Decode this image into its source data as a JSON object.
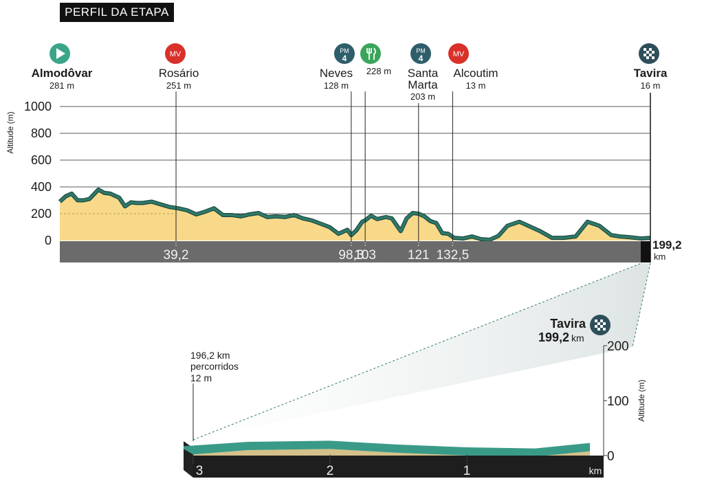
{
  "header": {
    "title": "PERFIL DA ETAPA"
  },
  "colors": {
    "terrain_fill": "#f8d98a",
    "profile_line": "#2f7a6a",
    "base_bar": "#6b6b6b",
    "finish_bar": "#111111",
    "start_icon": "#3aa58a",
    "mv_icon": "#d9302a",
    "pm_icon": "#2e5e6a",
    "food_icon": "#3aa55a",
    "finish_icon": "#2e4e5a",
    "zoom_top": "#3a9a88",
    "zoom_side": "#d4c08a"
  },
  "chart_data": [
    {
      "type": "area",
      "ylabel": "Altitude (m)",
      "ylim": [
        0,
        1000
      ],
      "yticks": [
        "0",
        "200",
        "400",
        "600",
        "800",
        "1000"
      ],
      "xlim": [
        0,
        199.2
      ],
      "x_tick_labels": [
        "39,2",
        "98,3",
        "103",
        "121",
        "132,5"
      ],
      "total_distance_label": "199,2",
      "total_distance_unit": "km",
      "profile": {
        "x": [
          0,
          2,
          4,
          6,
          8,
          10,
          13,
          15,
          17,
          20,
          22,
          24,
          26,
          28,
          31,
          34,
          37,
          40,
          43,
          46,
          49,
          52,
          55,
          58,
          61,
          64,
          67,
          70,
          73,
          76,
          79,
          82,
          85,
          88,
          91,
          94,
          97,
          98.3,
          100,
          102,
          103,
          105,
          107,
          110,
          112,
          115,
          117,
          119,
          121,
          123,
          125,
          127,
          129,
          131,
          133,
          136,
          139,
          142,
          145,
          148,
          151,
          155,
          158,
          162,
          166,
          170,
          174,
          178,
          182,
          186,
          189,
          192,
          196,
          199.2
        ],
        "y": [
          290,
          330,
          350,
          300,
          300,
          310,
          380,
          355,
          350,
          320,
          255,
          285,
          280,
          280,
          290,
          270,
          250,
          240,
          225,
          195,
          215,
          240,
          190,
          190,
          180,
          195,
          205,
          175,
          180,
          175,
          190,
          165,
          150,
          125,
          100,
          50,
          80,
          40,
          75,
          140,
          150,
          185,
          160,
          175,
          165,
          70,
          165,
          205,
          200,
          180,
          145,
          130,
          55,
          50,
          20,
          15,
          30,
          10,
          5,
          35,
          110,
          140,
          110,
          70,
          20,
          20,
          30,
          140,
          110,
          40,
          30,
          25,
          15,
          20
        ]
      },
      "waypoints": [
        {
          "name": "Almodôvar",
          "altitude": "281 m",
          "icon": "start-icon",
          "bold": true
        },
        {
          "name": "Rosário",
          "altitude": "251 m",
          "icon": "mv-icon",
          "icon_label": "MV",
          "km": 39.2
        },
        {
          "name": "Neves",
          "altitude": "128 m",
          "icon": "pm-icon",
          "icon_label": "PM",
          "icon_num": "4",
          "km": 98.3
        },
        {
          "name": "",
          "altitude": "228 m",
          "icon": "food-icon",
          "km": 103
        },
        {
          "name_line1": "Santa",
          "name_line2": "Marta",
          "altitude": "203 m",
          "icon": "pm-icon",
          "icon_label": "PM",
          "icon_num": "4",
          "km": 121
        },
        {
          "name": "Alcoutim",
          "altitude": "13 m",
          "icon": "mv-icon",
          "icon_label": "MV",
          "km": 132.5
        },
        {
          "name": "Tavira",
          "altitude": "16 m",
          "icon": "finish-icon",
          "bold": true,
          "km": 199.2
        }
      ]
    },
    {
      "type": "area",
      "ylabel": "Altitude (m)",
      "ylim": [
        0,
        200
      ],
      "yticks": [
        "0",
        "100",
        "200"
      ],
      "xlim": [
        3,
        0
      ],
      "x_tick_labels": [
        "3",
        "2",
        "1"
      ],
      "x_unit": "km",
      "finish_name": "Tavira",
      "finish_km": "199,2",
      "finish_km_unit": "km",
      "start_note_line1": "196,2 km",
      "start_note_line2": "percorridos",
      "start_note_line3": "12 m",
      "profile": {
        "x": [
          3,
          2.6,
          2,
          1.5,
          1,
          0.5,
          0.1
        ],
        "y": [
          12,
          20,
          22,
          15,
          10,
          8,
          18
        ]
      }
    }
  ]
}
